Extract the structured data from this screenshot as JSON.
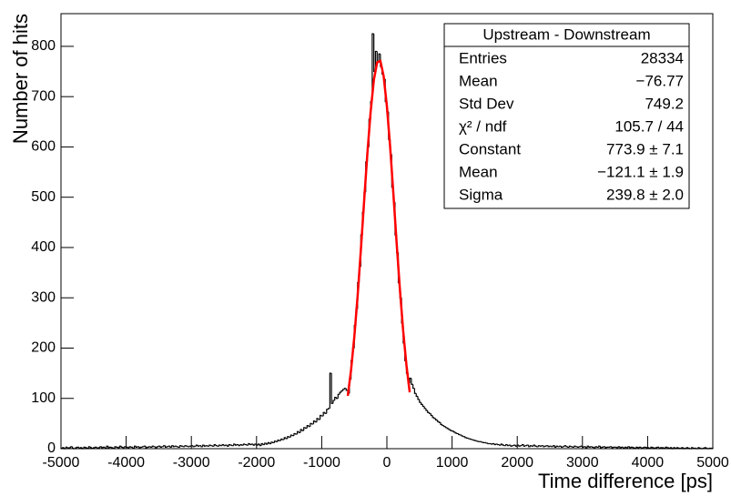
{
  "chart_data": {
    "type": "histogram",
    "x_label": "Time difference [ps]",
    "y_label": "Number of hits",
    "color": "#000000",
    "xlim": [
      -5000,
      5000
    ],
    "ylim": [
      0,
      865
    ],
    "xticks": [
      -5000,
      -4000,
      -3000,
      -2000,
      -1000,
      0,
      1000,
      2000,
      3000,
      4000,
      5000
    ],
    "yticks": [
      0,
      100,
      200,
      300,
      400,
      500,
      600,
      700,
      800
    ],
    "bins": [
      -5000,
      -4975,
      -4950,
      -4925,
      -4900,
      -4875,
      -4850,
      -4825,
      -4800,
      -4775,
      -4750,
      -4725,
      -4700,
      -4675,
      -4650,
      -4625,
      -4600,
      -4575,
      -4550,
      -4525,
      -4500,
      -4475,
      -4450,
      -4425,
      -4400,
      -4375,
      -4350,
      -4325,
      -4300,
      -4275,
      -4250,
      -4225,
      -4200,
      -4175,
      -4150,
      -4125,
      -4100,
      -4075,
      -4050,
      -4025,
      -4000,
      -3975,
      -3950,
      -3925,
      -3900,
      -3875,
      -3850,
      -3825,
      -3800,
      -3775,
      -3750,
      -3725,
      -3700,
      -3675,
      -3650,
      -3625,
      -3600,
      -3575,
      -3550,
      -3525,
      -3500,
      -3475,
      -3450,
      -3425,
      -3400,
      -3375,
      -3350,
      -3325,
      -3300,
      -3275,
      -3250,
      -3225,
      -3200,
      -3175,
      -3150,
      -3125,
      -3100,
      -3075,
      -3050,
      -3025,
      -3000,
      -2975,
      -2950,
      -2925,
      -2900,
      -2875,
      -2850,
      -2825,
      -2800,
      -2775,
      -2750,
      -2725,
      -2700,
      -2675,
      -2650,
      -2625,
      -2600,
      -2575,
      -2550,
      -2525,
      -2500,
      -2475,
      -2450,
      -2425,
      -2400,
      -2375,
      -2350,
      -2325,
      -2300,
      -2275,
      -2250,
      -2225,
      -2200,
      -2175,
      -2150,
      -2125,
      -2100,
      -2075,
      -2050,
      -2025,
      -2000,
      -1975,
      -1950,
      -1925,
      -1900,
      -1875,
      -1850,
      -1825,
      -1800,
      -1775,
      -1750,
      -1725,
      -1700,
      -1675,
      -1650,
      -1625,
      -1600,
      -1575,
      -1550,
      -1525,
      -1500,
      -1475,
      -1450,
      -1425,
      -1400,
      -1375,
      -1350,
      -1325,
      -1300,
      -1275,
      -1250,
      -1225,
      -1200,
      -1175,
      -1150,
      -1125,
      -1100,
      -1075,
      -1050,
      -1025,
      -1000,
      -975,
      -950,
      -925,
      -900,
      -875,
      -850,
      -825,
      -800,
      -775,
      -750,
      -725,
      -700,
      -675,
      -650,
      -625,
      -600,
      -575,
      -550,
      -525,
      -500,
      -475,
      -450,
      -425,
      -400,
      -375,
      -350,
      -325,
      -300,
      -275,
      -250,
      -225,
      -200,
      -175,
      -150,
      -125,
      -100,
      -75,
      -50,
      -25,
      0,
      25,
      50,
      75,
      100,
      125,
      150,
      175,
      200,
      225,
      250,
      275,
      300,
      325,
      350,
      375,
      400,
      425,
      450,
      475,
      500,
      525,
      550,
      575,
      600,
      625,
      650,
      675,
      700,
      725,
      750,
      775,
      800,
      825,
      850,
      875,
      900,
      925,
      950,
      975,
      1000,
      1025,
      1050,
      1075,
      1100,
      1125,
      1150,
      1175,
      1200,
      1225,
      1250,
      1275,
      1300,
      1325,
      1350,
      1375,
      1400,
      1425,
      1450,
      1475,
      1500,
      1525,
      1550,
      1575,
      1600,
      1625,
      1650,
      1675,
      1700,
      1725,
      1750,
      1775,
      1800,
      1825,
      1850,
      1875,
      1900,
      1925,
      1950,
      1975,
      2000,
      2025,
      2050,
      2075,
      2100,
      2125,
      2150,
      2175,
      2200,
      2225,
      2250,
      2275,
      2300,
      2325,
      2350,
      2375,
      2400,
      2425,
      2450,
      2475,
      2500,
      2525,
      2550,
      2575,
      2600,
      2625,
      2650,
      2675,
      2700,
      2725,
      2750,
      2775,
      2800,
      2825,
      2850,
      2875,
      2900,
      2925,
      2950,
      2975,
      3000,
      3025,
      3050,
      3075,
      3100,
      3125,
      3150,
      3175,
      3200,
      3225,
      3250,
      3275,
      3300,
      3325,
      3350,
      3375,
      3400,
      3425,
      3450,
      3475,
      3500,
      3525,
      3550,
      3575,
      3600,
      3625,
      3650,
      3675,
      3700,
      3725,
      3750,
      3775,
      3800,
      3825,
      3850,
      3875,
      3900,
      3925,
      3950,
      3975,
      4000,
      4025,
      4050,
      4075,
      4100,
      4125,
      4150,
      4175,
      4200,
      4225,
      4250,
      4275,
      4300,
      4325,
      4350,
      4375,
      4400,
      4425,
      4450,
      4475,
      4500,
      4525,
      4550,
      4575,
      4600,
      4625,
      4650,
      4675,
      4700,
      4725,
      4750,
      4775,
      4800,
      4825,
      4850,
      4875,
      4900,
      4925,
      4950,
      4975,
      5000
    ],
    "values": [
      1,
      2,
      0,
      3,
      1,
      2,
      4,
      1,
      0,
      2,
      3,
      1,
      2,
      0,
      3,
      2,
      1,
      4,
      2,
      1,
      2,
      3,
      1,
      2,
      4,
      2,
      3,
      1,
      5,
      2,
      3,
      2,
      1,
      4,
      3,
      2,
      5,
      3,
      2,
      4,
      3,
      2,
      4,
      3,
      1,
      5,
      3,
      4,
      2,
      3,
      4,
      5,
      2,
      3,
      4,
      3,
      5,
      4,
      2,
      4,
      5,
      3,
      4,
      6,
      3,
      4,
      5,
      3,
      6,
      4,
      5,
      4,
      3,
      6,
      5,
      4,
      6,
      5,
      4,
      5,
      6,
      4,
      5,
      7,
      5,
      6,
      4,
      7,
      5,
      6,
      5,
      7,
      6,
      5,
      8,
      6,
      5,
      7,
      6,
      8,
      6,
      7,
      5,
      8,
      7,
      6,
      9,
      7,
      8,
      6,
      8,
      7,
      9,
      8,
      7,
      10,
      8,
      9,
      7,
      9,
      7,
      9,
      6,
      10,
      8,
      11,
      9,
      12,
      10,
      13,
      12,
      15,
      14,
      17,
      16,
      19,
      18,
      22,
      20,
      24,
      23,
      27,
      26,
      30,
      29,
      34,
      32,
      38,
      36,
      42,
      41,
      46,
      44,
      50,
      49,
      55,
      53,
      60,
      58,
      66,
      65,
      72,
      70,
      78,
      80,
      150,
      90,
      96,
      102,
      100,
      108,
      112,
      115,
      118,
      120,
      116,
      110,
      138,
      175,
      200,
      245,
      278,
      330,
      362,
      425,
      470,
      510,
      570,
      600,
      655,
      690,
      825,
      750,
      790,
      770,
      785,
      760,
      745,
      735,
      690,
      670,
      615,
      585,
      520,
      490,
      425,
      390,
      330,
      300,
      250,
      210,
      175,
      150,
      130,
      140,
      128,
      120,
      110,
      104,
      98,
      92,
      88,
      84,
      80,
      76,
      72,
      70,
      66,
      62,
      60,
      57,
      54,
      52,
      48,
      46,
      44,
      42,
      40,
      38,
      36,
      35,
      33,
      31,
      30,
      28,
      27,
      25,
      24,
      22,
      21,
      20,
      19,
      18,
      17,
      16,
      15,
      14,
      14,
      13,
      12,
      12,
      11,
      10,
      10,
      9,
      10,
      8,
      9,
      8,
      7,
      9,
      7,
      6,
      8,
      6,
      7,
      5,
      6,
      7,
      5,
      7,
      5,
      6,
      8,
      5,
      6,
      7,
      4,
      6,
      5,
      7,
      5,
      4,
      6,
      5,
      6,
      4,
      5,
      6,
      4,
      5,
      4,
      6,
      3,
      5,
      4,
      5,
      3,
      4,
      6,
      4,
      3,
      5,
      4,
      3,
      5,
      4,
      3,
      4,
      5,
      3,
      4,
      2,
      5,
      3,
      4,
      3,
      2,
      4,
      3,
      5,
      2,
      3,
      4,
      2,
      3,
      3,
      4,
      2,
      3,
      3,
      2,
      4,
      2,
      3,
      1,
      3,
      2,
      4,
      2,
      3,
      2,
      1,
      3,
      2,
      3,
      1,
      2,
      3,
      2,
      2,
      1,
      3,
      2,
      1,
      2,
      3,
      1,
      2,
      2,
      1,
      3,
      2,
      1,
      2,
      0,
      2,
      1,
      2,
      1,
      1,
      2,
      0,
      1,
      2,
      1,
      0,
      2,
      1,
      1,
      0,
      2,
      1,
      0,
      1,
      2,
      1,
      0,
      1,
      1
    ],
    "fit": {
      "color": "#ff0000",
      "x": [
        -600,
        -550,
        -500,
        -450,
        -400,
        -350,
        -300,
        -250,
        -200,
        -150,
        -100,
        -50,
        0,
        50,
        100,
        150,
        200,
        250,
        300,
        350
      ],
      "values": [
        105,
        156,
        222,
        302,
        394,
        491,
        586,
        669,
        733,
        768,
        771,
        741,
        681,
        600,
        506,
        408,
        316,
        234,
        166,
        112
      ]
    },
    "stats": {
      "title": "Upstream - Downstream",
      "rows": [
        [
          "Entries",
          "28334"
        ],
        [
          "Mean",
          "−76.77"
        ],
        [
          "Std Dev",
          "749.2"
        ],
        [
          "χ² / ndf",
          "105.7 / 44"
        ],
        [
          "Constant",
          "773.9 ± 7.1"
        ],
        [
          "Mean",
          "−121.1 ± 1.9"
        ],
        [
          "Sigma",
          "239.8 ± 2.0"
        ]
      ]
    }
  }
}
